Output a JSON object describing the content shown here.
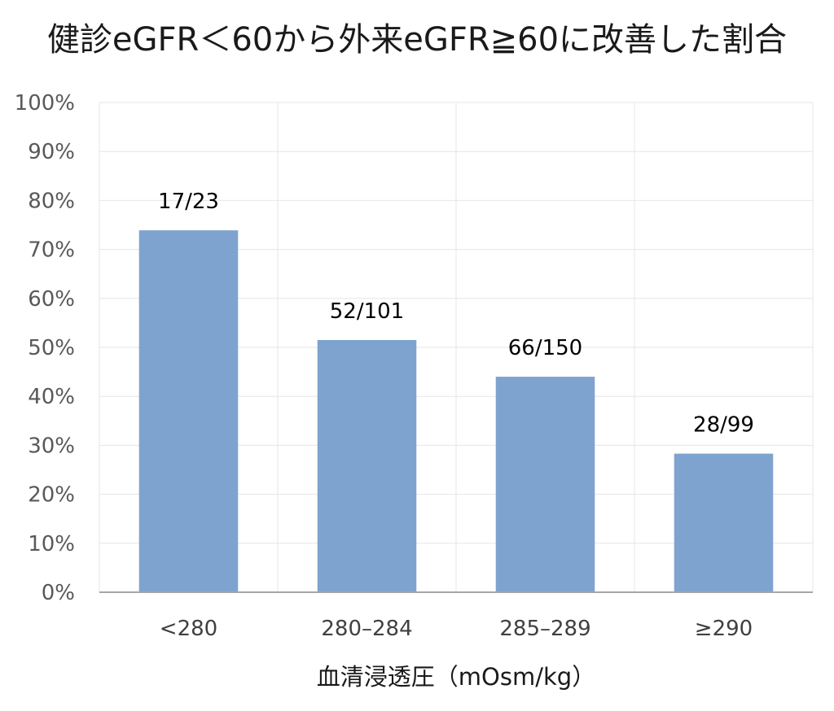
{
  "chart_data": {
    "type": "bar",
    "title": "健診eGFR＜60から外来eGFR≧60に改善した割合",
    "xlabel": "血清浸透圧（mOsm/kg）",
    "ylabel": "",
    "categories": [
      "<280",
      "280–284",
      "285–289",
      "≥290"
    ],
    "values": [
      73.9,
      51.5,
      44.0,
      28.3
    ],
    "data_labels": [
      "17/23",
      "52/101",
      "66/150",
      "28/99"
    ],
    "ylim": [
      0,
      100
    ],
    "y_ticks": [
      "0%",
      "10%",
      "20%",
      "30%",
      "40%",
      "50%",
      "60%",
      "70%",
      "80%",
      "90%",
      "100%"
    ],
    "grid": true,
    "legend": "none",
    "bar_color": "#7FA3CF"
  }
}
